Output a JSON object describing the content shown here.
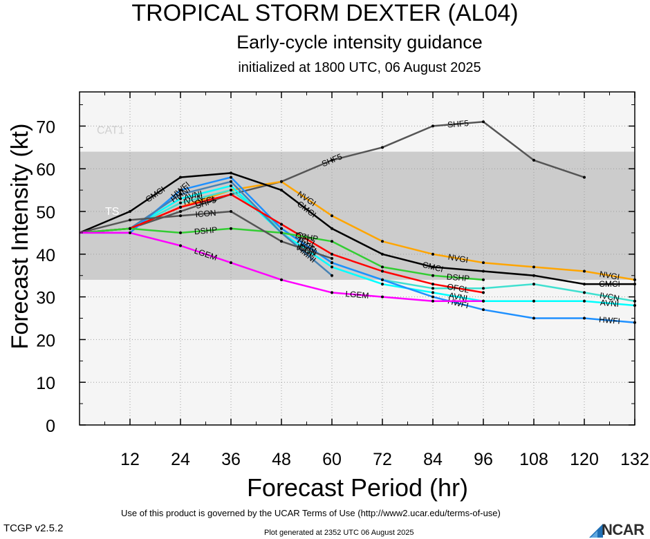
{
  "header": {
    "title": "TROPICAL STORM DEXTER (AL04)",
    "subtitle": "Early-cycle intensity guidance",
    "initialized": "initialized at 1800 UTC, 06 August 2025"
  },
  "footer": {
    "terms": "Use of this product is governed by the UCAR Terms of Use (http://www2.ucar.edu/terms-of-use)",
    "version": "TCGP v2.5.2",
    "generated": "Plot generated at 2352 UTC   06 August 2025",
    "logo": "NCAR"
  },
  "colors": {
    "plot_background": "#f5f5f5",
    "ts_band": "#cccccc",
    "band_label": "#ffffff",
    "cat_label": "#cfcfcf"
  },
  "chart_data": {
    "type": "line",
    "xlabel": "Forecast Period (hr)",
    "ylabel": "Forecast Intensity (kt)",
    "xlim": [
      0,
      132
    ],
    "ylim": [
      0,
      78
    ],
    "xticks": [
      12,
      24,
      36,
      48,
      60,
      72,
      84,
      96,
      108,
      120,
      132
    ],
    "yticks": [
      0,
      10,
      20,
      30,
      40,
      50,
      60,
      70
    ],
    "grid": true,
    "bands": [
      {
        "label": "TS",
        "from": 34,
        "to": 64
      },
      {
        "label": "CAT1",
        "from": 64,
        "to": 83
      }
    ],
    "series": [
      {
        "name": "SHF5",
        "color": "#555555",
        "x": [
          0,
          12,
          24,
          36,
          48,
          60,
          72,
          84,
          96,
          108,
          120
        ],
        "y": [
          45,
          46,
          50,
          54,
          57,
          62,
          65,
          70,
          71,
          62,
          58
        ],
        "label_x": [
          30,
          60,
          90
        ]
      },
      {
        "name": "NVGI",
        "color": "#ffa500",
        "x": [
          0,
          12,
          24,
          36,
          48,
          60,
          72,
          84,
          96,
          108,
          120,
          132
        ],
        "y": [
          45,
          46,
          51,
          55,
          57,
          49,
          43,
          40,
          38,
          37,
          36,
          34
        ],
        "label_x": [
          54,
          90,
          126
        ]
      },
      {
        "name": "CMCI",
        "color": "#000000",
        "x": [
          0,
          12,
          24,
          36,
          48,
          60,
          72,
          84,
          96,
          108,
          120,
          132
        ],
        "y": [
          45,
          50,
          58,
          59,
          55,
          46,
          40,
          37,
          36,
          35,
          33,
          33
        ],
        "label_x": [
          18,
          54,
          84,
          126
        ]
      },
      {
        "name": "IVCN",
        "color": "#40e0d0",
        "x": [
          0,
          12,
          24,
          36,
          48,
          60,
          72,
          84,
          96,
          108,
          120,
          132
        ],
        "y": [
          45,
          46,
          52,
          55,
          46,
          38,
          34,
          32,
          32,
          33,
          31,
          29
        ],
        "label_x": [
          27,
          54,
          126
        ]
      },
      {
        "name": "AVNI",
        "color": "#00ffff",
        "x": [
          0,
          12,
          24,
          36,
          48,
          60,
          72,
          84,
          96,
          108,
          120,
          132
        ],
        "y": [
          45,
          46,
          53,
          56,
          45,
          37,
          33,
          31,
          29,
          29,
          29,
          28
        ],
        "label_x": [
          27,
          54,
          90,
          126
        ]
      },
      {
        "name": "HWFI",
        "color": "#1e90ff",
        "x": [
          0,
          12,
          24,
          36,
          48,
          60,
          72,
          84,
          96,
          108,
          120,
          132
        ],
        "y": [
          45,
          45,
          55,
          58,
          46,
          38,
          34,
          30,
          27,
          25,
          25,
          24
        ],
        "label_x": [
          24,
          54,
          90,
          126
        ]
      },
      {
        "name": "HMNI",
        "color": "#4682b4",
        "x": [
          0,
          12,
          24,
          36,
          48,
          60
        ],
        "y": [
          45,
          46,
          54,
          57,
          45,
          35
        ],
        "label_x": [
          24,
          54
        ]
      },
      {
        "name": "OFCL",
        "color": "#ff0000",
        "x": [
          0,
          12,
          24,
          36,
          48,
          60,
          72,
          84,
          96
        ],
        "y": [
          45,
          46,
          51,
          54,
          47,
          40,
          36,
          33,
          31
        ],
        "label_x": [
          30,
          54,
          90
        ]
      },
      {
        "name": "DSHP",
        "color": "#32cd32",
        "x": [
          0,
          12,
          24,
          36,
          48,
          60,
          72,
          84,
          96
        ],
        "y": [
          45,
          46,
          45,
          46,
          45,
          43,
          37,
          35,
          34
        ],
        "label_x": [
          30,
          54,
          90
        ]
      },
      {
        "name": "ICON",
        "color": "#555555",
        "x": [
          0,
          12,
          24,
          36,
          48,
          60
        ],
        "y": [
          45,
          48,
          49,
          50,
          43,
          39
        ],
        "label_x": [
          30,
          54
        ]
      },
      {
        "name": "LGEM",
        "color": "#ff00ff",
        "x": [
          0,
          12,
          24,
          36,
          48,
          60,
          72,
          84,
          96
        ],
        "y": [
          45,
          45,
          42,
          38,
          34,
          31,
          30,
          29,
          29
        ],
        "label_x": [
          30,
          66
        ]
      }
    ]
  }
}
